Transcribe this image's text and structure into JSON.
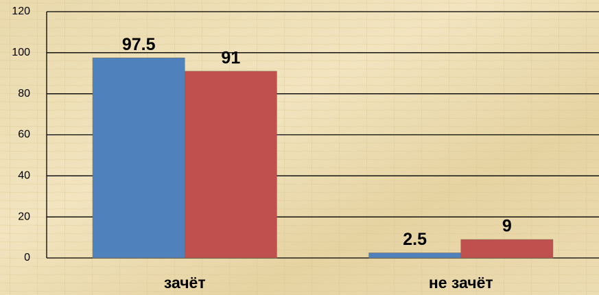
{
  "chart_data": {
    "type": "bar",
    "categories": [
      "зачёт",
      "не зачёт"
    ],
    "series": [
      {
        "color": "#4f81bd",
        "values": [
          97.5,
          2.5
        ]
      },
      {
        "color": "#c0504d",
        "values": [
          91,
          9
        ]
      }
    ],
    "ylim": [
      0,
      120
    ],
    "yticks": [
      0,
      20,
      40,
      60,
      80,
      100,
      120
    ],
    "grid": true
  }
}
